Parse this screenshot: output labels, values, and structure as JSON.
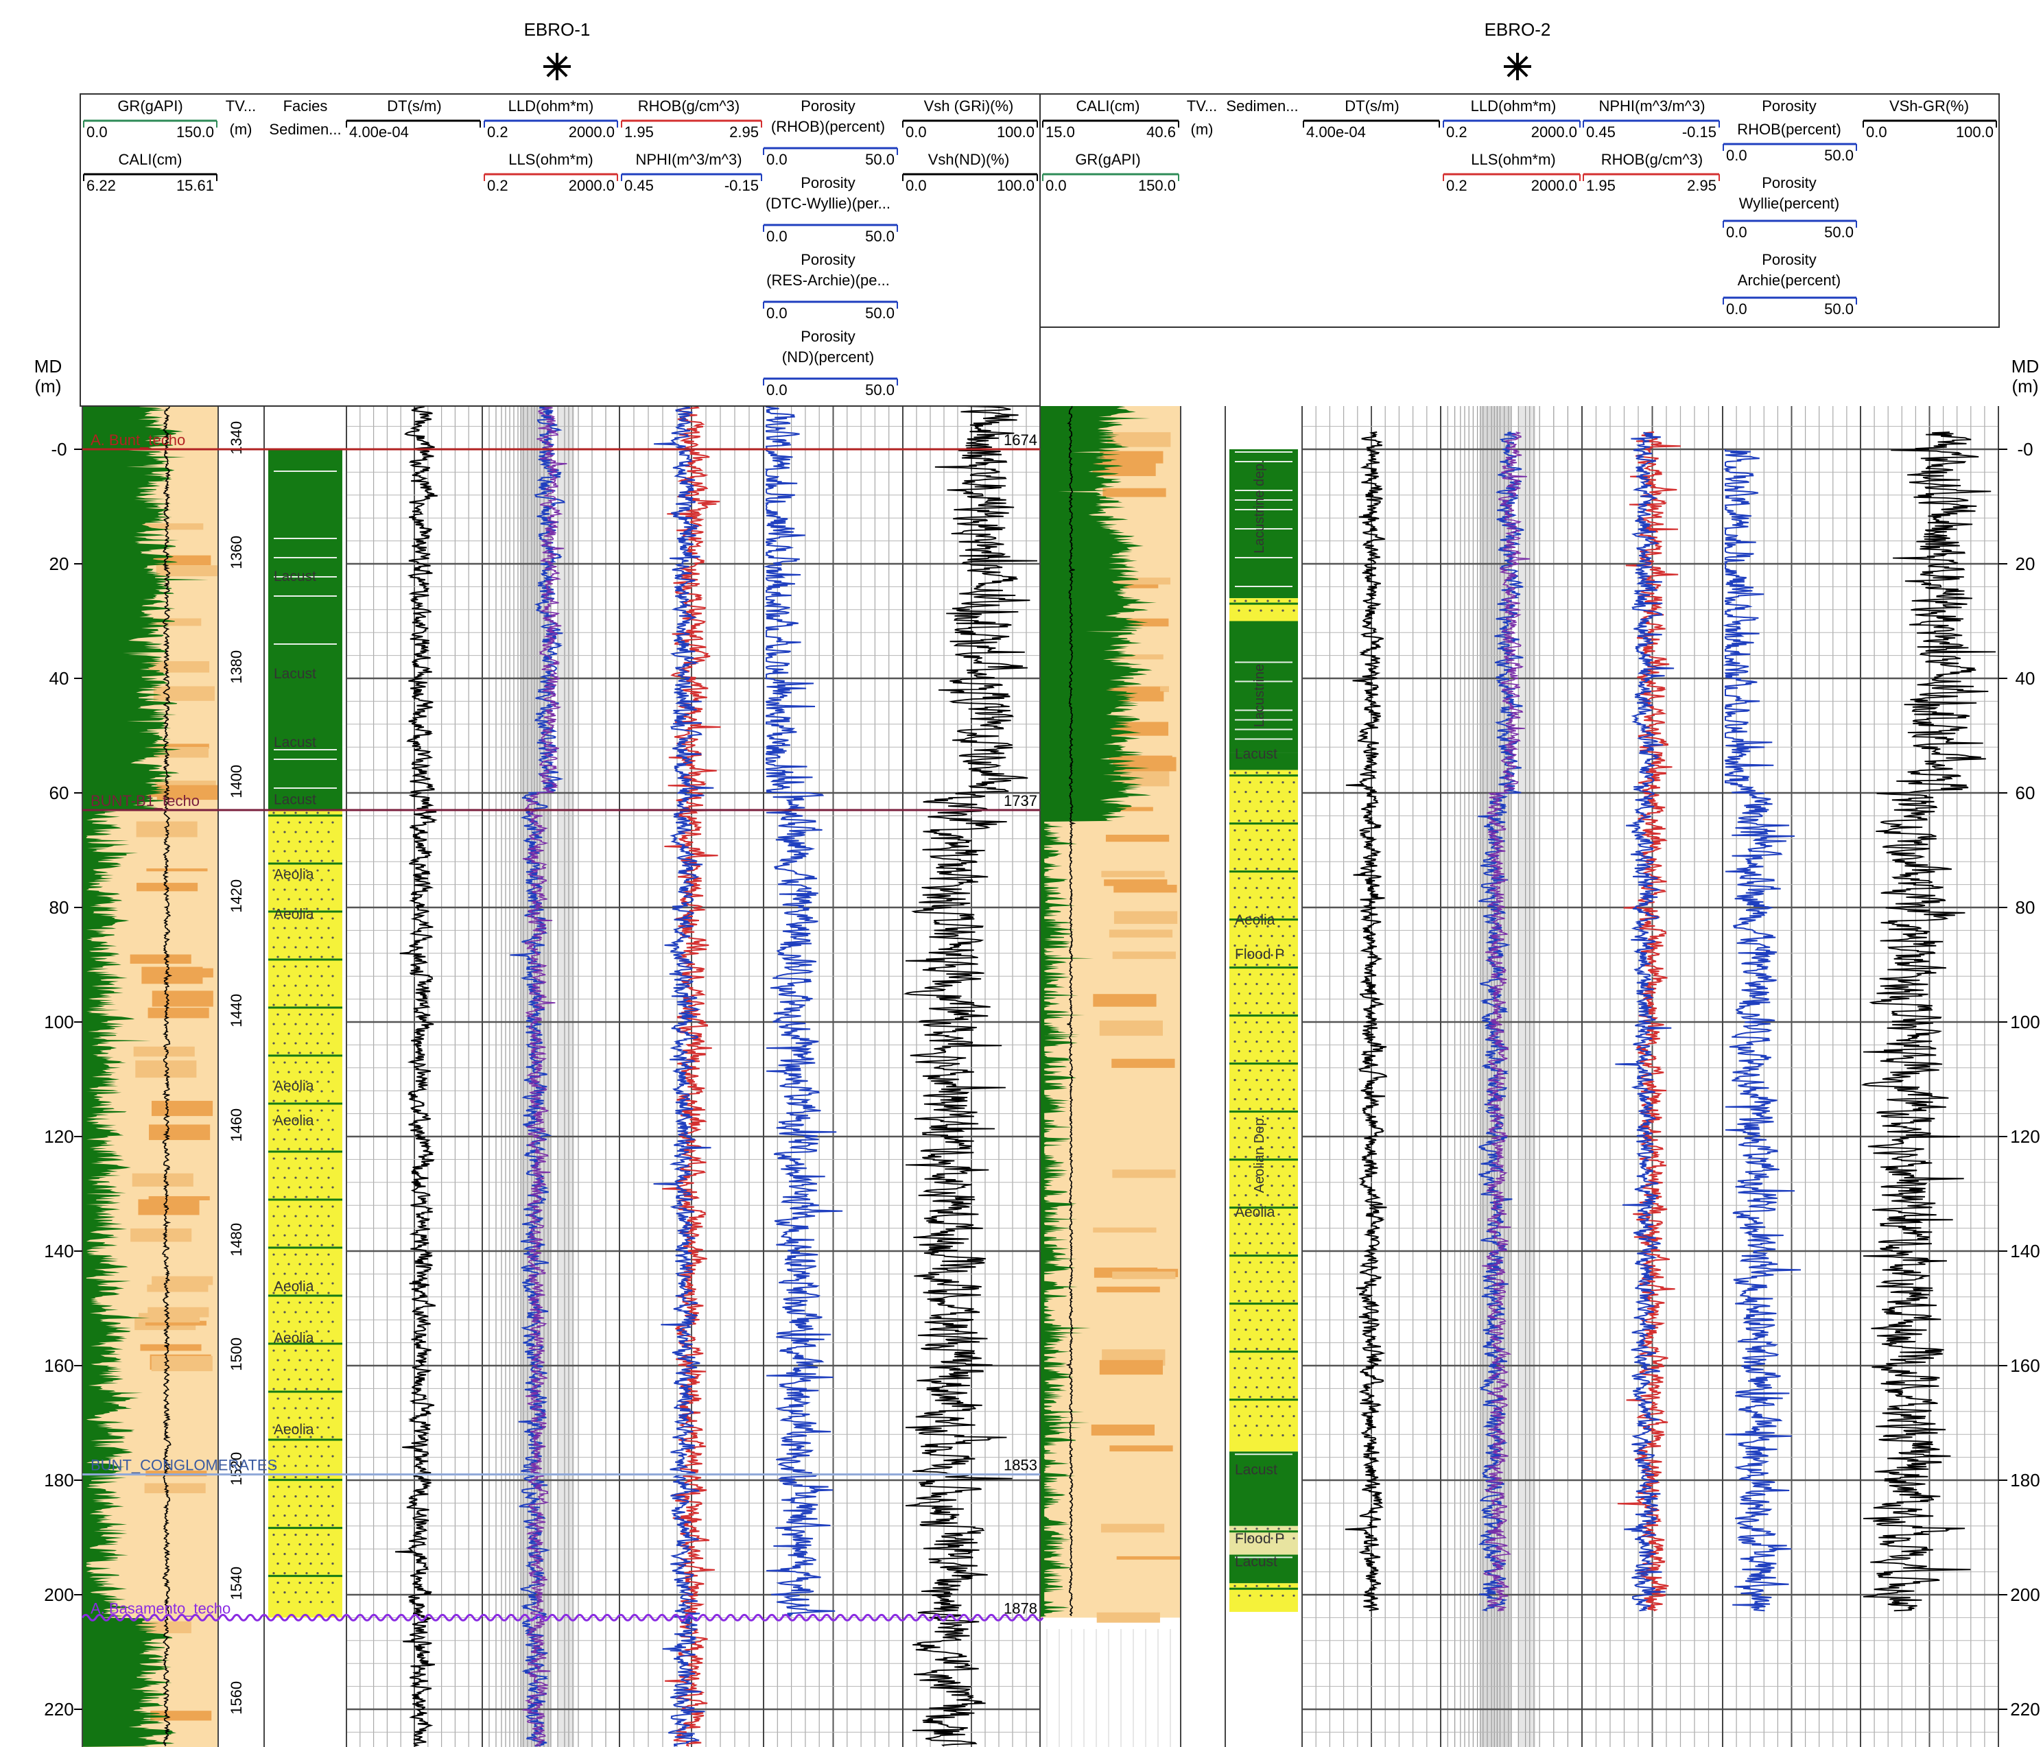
{
  "md_label": "MD",
  "md_unit": "(m)",
  "md_ticks": [
    0,
    20,
    40,
    60,
    80,
    100,
    120,
    140,
    160,
    180,
    200,
    220
  ],
  "md_tick_labels": [
    "-0",
    "20",
    "40",
    "60",
    "80",
    "100",
    "120",
    "140",
    "160",
    "180",
    "200",
    "220"
  ],
  "wells": [
    {
      "name": "EBRO-1",
      "tvd_ticks": [
        1340,
        1360,
        1380,
        1400,
        1420,
        1440,
        1460,
        1480,
        1500,
        1520,
        1540,
        1560
      ],
      "headers": [
        {
          "title": "GR(gAPI)",
          "scale_left": "0.0",
          "scale_right": "150.0",
          "color": "#2e8b57"
        },
        {
          "title": "CALI(cm)",
          "scale_left": "6.22",
          "scale_right": "15.61",
          "color": "#000000"
        },
        {
          "title": "TV...",
          "sub": "(m)"
        },
        {
          "title": "Facies",
          "sub": "Sedimen..."
        },
        {
          "title": "DT(s/m)",
          "scale_left": "4.00e-04",
          "scale_right": "",
          "color": "#000000"
        },
        {
          "title": "LLD(ohm*m)",
          "scale_left": "0.2",
          "scale_right": "2000.0",
          "color": "#1f3fbf"
        },
        {
          "title": "LLS(ohm*m)",
          "scale_left": "0.2",
          "scale_right": "2000.0",
          "color": "#d43030"
        },
        {
          "title": "RHOB(g/cm^3)",
          "scale_left": "1.95",
          "scale_right": "2.95",
          "color": "#d43030"
        },
        {
          "title": "NPHI(m^3/m^3)",
          "scale_left": "0.45",
          "scale_right": "-0.15",
          "color": "#1f3fbf"
        },
        {
          "title": "Porosity",
          "sub": "(RHOB)(percent)",
          "scale_left": "0.0",
          "scale_right": "50.0",
          "color": "#1f3fbf"
        },
        {
          "title": "Porosity",
          "sub": "(DTC-Wyllie)(per...",
          "scale_left": "0.0",
          "scale_right": "50.0",
          "color": "#1f3fbf"
        },
        {
          "title": "Porosity",
          "sub": "(RES-Archie)(pe...",
          "scale_left": "0.0",
          "scale_right": "50.0",
          "color": "#1f3fbf"
        },
        {
          "title": "Porosity",
          "sub": "(ND)(percent)",
          "scale_left": "0.0",
          "scale_right": "50.0",
          "color": "#1f3fbf"
        },
        {
          "title": "Vsh (GRi)(%)",
          "scale_left": "0.0",
          "scale_right": "100.0",
          "color": "#000000"
        },
        {
          "title": "Vsh(ND)(%)",
          "scale_left": "0.0",
          "scale_right": "100.0",
          "color": "#000000"
        }
      ],
      "formation_tops": [
        {
          "name": "A. Bunt_techo",
          "md": 0,
          "md_label": "1674",
          "color": "#b22222"
        },
        {
          "name": "BUNT-B1_techo",
          "md": 63,
          "md_label": "1737",
          "color": "#7a1f3d"
        },
        {
          "name": "BUNT_CONGLOMERATES",
          "md": 179,
          "md_label": "1853",
          "color": "#8fa8d8"
        },
        {
          "name": "A. Basamento_techo",
          "md": 204,
          "md_label": "1878",
          "color": "#8a2be2"
        }
      ],
      "facies_labels": [
        {
          "text": "Lacust",
          "md": 23
        },
        {
          "text": "Lacust",
          "md": 40
        },
        {
          "text": "Lacust",
          "md": 52
        },
        {
          "text": "Lacust",
          "md": 62
        },
        {
          "text": "Aeolia",
          "md": 75
        },
        {
          "text": "Aeolia",
          "md": 82
        },
        {
          "text": "Aeolia",
          "md": 112
        },
        {
          "text": "Aeolia",
          "md": 118
        },
        {
          "text": "Aeolia",
          "md": 147
        },
        {
          "text": "Aeolia",
          "md": 156
        },
        {
          "text": "Aeolia",
          "md": 172
        }
      ]
    },
    {
      "name": "EBRO-2",
      "headers": [
        {
          "title": "CALI(cm)",
          "scale_left": "15.0",
          "scale_right": "40.6",
          "color": "#000000"
        },
        {
          "title": "GR(gAPI)",
          "scale_left": "0.0",
          "scale_right": "150.0",
          "color": "#2e8b57"
        },
        {
          "title": "TV...",
          "sub": "(m)"
        },
        {
          "title": "Sedimen..."
        },
        {
          "title": "DT(s/m)",
          "scale_left": "4.00e-04",
          "scale_right": "",
          "color": "#000000"
        },
        {
          "title": "LLD(ohm*m)",
          "scale_left": "0.2",
          "scale_right": "2000.0",
          "color": "#1f3fbf"
        },
        {
          "title": "LLS(ohm*m)",
          "scale_left": "0.2",
          "scale_right": "2000.0",
          "color": "#d43030"
        },
        {
          "title": "NPHI(m^3/m^3)",
          "scale_left": "0.45",
          "scale_right": "-0.15",
          "color": "#1f3fbf"
        },
        {
          "title": "RHOB(g/cm^3)",
          "scale_left": "1.95",
          "scale_right": "2.95",
          "color": "#d43030"
        },
        {
          "title": "Porosity",
          "sub": "RHOB(percent)",
          "scale_left": "0.0",
          "scale_right": "50.0",
          "color": "#1f3fbf"
        },
        {
          "title": "Porosity",
          "sub": "Wyllie(percent)",
          "scale_left": "0.0",
          "scale_right": "50.0",
          "color": "#1f3fbf"
        },
        {
          "title": "Porosity",
          "sub": "Archie(percent)",
          "scale_left": "0.0",
          "scale_right": "50.0",
          "color": "#1f3fbf"
        },
        {
          "title": "VSh-GR(%)",
          "scale_left": "0.0",
          "scale_right": "100.0",
          "color": "#000000"
        }
      ],
      "facies_labels": [
        {
          "text": "Lacustrine dep.",
          "md": 10,
          "vertical": true
        },
        {
          "text": "Lacustrine",
          "md": 43,
          "vertical": true
        },
        {
          "text": "Lacust",
          "md": 54
        },
        {
          "text": "Aeolia",
          "md": 83
        },
        {
          "text": "Flood P",
          "md": 89
        },
        {
          "text": "Aeolian Dep.",
          "md": 123,
          "vertical": true
        },
        {
          "text": "Aeolia",
          "md": 134
        },
        {
          "text": "Lacust",
          "md": 179
        },
        {
          "text": "Flood P",
          "md": 191
        },
        {
          "text": "Lacust",
          "md": 195
        }
      ]
    }
  ],
  "chart_data": {
    "type": "well-log correlation panel",
    "y_axis": {
      "label": "MD",
      "unit": "(m)",
      "range": [
        -8,
        232
      ],
      "ticks": [
        0,
        20,
        40,
        60,
        80,
        100,
        120,
        140,
        160,
        180,
        200,
        220
      ]
    },
    "ebro1_tvd_axis": {
      "unit": "(m)",
      "ticks": [
        1340,
        1360,
        1380,
        1400,
        1420,
        1440,
        1460,
        1480,
        1500,
        1520,
        1540,
        1560
      ]
    },
    "ebro1_formation_tops_md": {
      "A. Bunt_techo": 0,
      "BUNT-B1_techo": 63,
      "BUNT_CONGLOMERATES": 179,
      "A. Basamento_techo": 204
    },
    "ebro1_formation_tops_depth_labels": [
      1674,
      1737,
      1853,
      1878
    ],
    "ebro1_facies_intervals": [
      {
        "from": 0,
        "to": 63,
        "facies": "Lacust"
      },
      {
        "from": 63,
        "to": 179,
        "facies": "Aeolia"
      },
      {
        "from": 179,
        "to": 204,
        "facies": "Aeolia"
      }
    ],
    "ebro2_facies_intervals": [
      {
        "from": 0,
        "to": 26,
        "facies": "Lacustrine dep."
      },
      {
        "from": 26,
        "to": 30,
        "facies": "Aeolia"
      },
      {
        "from": 30,
        "to": 53,
        "facies": "Lacustrine"
      },
      {
        "from": 53,
        "to": 56,
        "facies": "Lacust"
      },
      {
        "from": 56,
        "to": 175,
        "facies": "Aeolian Dep."
      },
      {
        "from": 175,
        "to": 188,
        "facies": "Lacust"
      },
      {
        "from": 188,
        "to": 193,
        "facies": "Flood P"
      },
      {
        "from": 193,
        "to": 198,
        "facies": "Lacust"
      },
      {
        "from": 198,
        "to": 203,
        "facies": "Aeolia"
      }
    ],
    "colors": {
      "gr_fill_shale": "#127512",
      "gr_fill_sand": "#fbdca8",
      "sand_orange": "#e9953c",
      "lacustrine": "#147a14",
      "aeolian": "#f5f23a",
      "lld": "#1f3fbf",
      "rhob": "#d43030"
    }
  }
}
